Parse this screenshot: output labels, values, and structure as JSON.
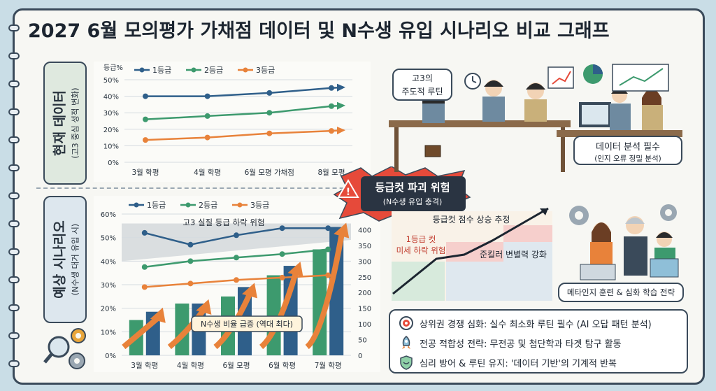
{
  "title": "2027 6월 모의평가 가채점 데이터 및 N수생 유입 시나리오 비교 그래프",
  "section1": {
    "label": "현재 데이터",
    "sublabel": "(고3 중심 성적 변화)"
  },
  "section2": {
    "label": "예상 시나리오",
    "sublabel": "(N수생 대거 유입 시)"
  },
  "chart_data": [
    {
      "type": "line",
      "ylabel": "등급%",
      "categories": [
        "3월 학평",
        "4월 학평",
        "6월 모평 가채점",
        "8월 모평"
      ],
      "yticks": [
        "0%",
        "10%",
        "20%",
        "30%",
        "40%",
        "50%"
      ],
      "ylim": [
        0,
        50
      ],
      "legend_position": "top-left",
      "grid": true,
      "series": [
        {
          "name": "1등급",
          "values": [
            40,
            40,
            42,
            45
          ],
          "color": "#2f5f8a"
        },
        {
          "name": "2등급",
          "values": [
            26,
            28,
            30,
            34
          ],
          "color": "#3d9a6e"
        },
        {
          "name": "3등급",
          "values": [
            13.5,
            15,
            17.5,
            19
          ],
          "color": "#e8823a"
        }
      ]
    },
    {
      "type": "bar+line",
      "categories": [
        "3월 학평",
        "4월 학평",
        "6월 모평",
        "6월 학평",
        "7월 학평"
      ],
      "yticks": [
        "0%",
        "10%",
        "20%",
        "30%",
        "40%",
        "50%",
        "60%"
      ],
      "ylim": [
        0,
        60
      ],
      "y2ticks": [
        "0",
        "50",
        "100",
        "150",
        "200",
        "250",
        "300",
        "350",
        "400"
      ],
      "y2lim": [
        0,
        450
      ],
      "legend_position": "top-left",
      "grid": true,
      "series": [
        {
          "name": "1등급",
          "values": [
            52,
            47,
            51,
            54,
            54
          ],
          "color": "#2f5f8a"
        },
        {
          "name": "2등급",
          "values": [
            37.5,
            40,
            41.5,
            43,
            45
          ],
          "color": "#3d9a6e"
        },
        {
          "name": "3등급",
          "values": [
            29,
            30.5,
            32,
            33,
            34
          ],
          "color": "#e8823a"
        }
      ],
      "bars": [
        {
          "green": 15,
          "blue": 18.5
        },
        {
          "green": 22,
          "blue": 22
        },
        {
          "green": 25,
          "blue": 29
        },
        {
          "green": 34,
          "blue": 38
        },
        {
          "green": 45,
          "blue": 54.5
        }
      ],
      "annotations": {
        "decline": "고3 실질 등급 하락 위험",
        "surge": "N수생 비율 급증 (역대 최다)"
      }
    }
  ],
  "warning": {
    "title": "등급컷 파괴 위험",
    "subtitle": "(N수생 유입 충격)"
  },
  "cutline": {
    "rise": "등급컷 점수 상승 추정",
    "risk1": "1등급 컷",
    "risk2": "미세 하락 위험",
    "killer": "준킬러 변별력 강화"
  },
  "callouts": {
    "routine1": "고3의",
    "routine2": "주도적 루틴",
    "analysis1": "데이터 분석 필수",
    "analysis2": "(인지 오류 정밀 분석)",
    "meta": "메타인지 훈련 & 심화 학습 전략"
  },
  "strategies": [
    {
      "icon": "target-icon",
      "text": "상위권 경쟁 심화: 실수 최소화 루틴 필수 (AI 오답 패턴 분석)"
    },
    {
      "icon": "rocket-icon",
      "text": "전공 적합성 전략: 무전공 및 첨단학과 타겟 탐구 활동"
    },
    {
      "icon": "shield-icon",
      "text": "심리 방어 & 루틴 유지: '데이터 기반'의 기계적 반복"
    }
  ]
}
